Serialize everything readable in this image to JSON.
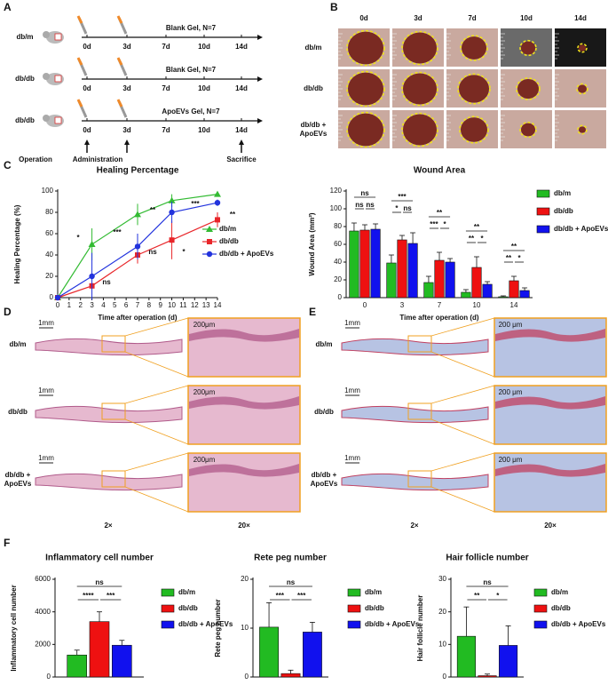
{
  "panel_labels": [
    "A",
    "B",
    "C",
    "D",
    "E",
    "F"
  ],
  "panel_a": {
    "rows": [
      {
        "group": "db/m",
        "treatment": "Blank Gel, N=7"
      },
      {
        "group": "db/db",
        "treatment": "Blank Gel, N=7"
      },
      {
        "group": "db/db",
        "treatment": "ApoEVs Gel, N=7"
      }
    ],
    "timepoints": [
      "0d",
      "3d",
      "7d",
      "10d",
      "14d"
    ],
    "steps": [
      "Operation",
      "Administration",
      "Sacrifice"
    ]
  },
  "panel_b": {
    "columns": [
      "0d",
      "3d",
      "7d",
      "10d",
      "14d"
    ],
    "rows": [
      "db/m",
      "db/db",
      "db/db + ApoEVs"
    ]
  },
  "panel_d": {
    "rows": [
      "db/m",
      "db/db",
      "db/db + ApoEVs"
    ],
    "scale_bars": [
      "1mm",
      "200μm"
    ],
    "magnifications": [
      "2×",
      "20×"
    ]
  },
  "panel_e": {
    "rows": [
      "db/m",
      "db/db",
      "db/db + ApoEVs"
    ],
    "scale_bars": [
      "1mm",
      "200 μm"
    ],
    "magnifications": [
      "2×",
      "20×"
    ]
  },
  "chart_data": [
    {
      "type": "line",
      "title": "Healing Percentage",
      "x_label": "Time after operation (d)",
      "y_label": "Healing Percentage (%)",
      "x": [
        0,
        3,
        7,
        10,
        14
      ],
      "xlim": [
        0,
        14
      ],
      "xticks": [
        0,
        1,
        2,
        3,
        4,
        5,
        6,
        7,
        8,
        9,
        10,
        11,
        12,
        13,
        14
      ],
      "ylim": [
        0,
        100
      ],
      "yticks": [
        0,
        20,
        40,
        60,
        80,
        100
      ],
      "series": [
        {
          "name": "db/m",
          "color": "#33bb33",
          "marker": "triangle",
          "values": [
            0,
            50,
            78,
            91,
            97
          ],
          "errors": [
            0,
            15,
            10,
            6,
            2
          ]
        },
        {
          "name": "db/db",
          "color": "#e8262a",
          "marker": "square",
          "values": [
            0,
            11,
            40,
            54,
            73
          ],
          "errors": [
            0,
            3,
            8,
            18,
            7
          ]
        },
        {
          "name": "db/db + ApoEVs",
          "color": "#2233dd",
          "marker": "circle",
          "values": [
            0,
            20,
            48,
            80,
            89
          ],
          "errors": [
            0,
            22,
            12,
            10,
            3
          ]
        }
      ],
      "annotations": [
        "*",
        "ns",
        "***",
        "ns",
        "**",
        "*",
        "***",
        "**"
      ]
    },
    {
      "type": "bar",
      "title": "Wound Area",
      "x_label": "Time after operation (d)",
      "y_label": "Wound Area (mm²)",
      "categories": [
        "0",
        "3",
        "7",
        "10",
        "14"
      ],
      "ylim": [
        0,
        120
      ],
      "yticks": [
        0,
        20,
        40,
        60,
        80,
        100,
        120
      ],
      "series": [
        {
          "name": "db/m",
          "color": "#22bb22",
          "values": [
            75,
            39,
            17,
            6,
            1
          ],
          "errors": [
            9,
            9,
            7,
            3,
            1
          ]
        },
        {
          "name": "db/db",
          "color": "#ee1111",
          "values": [
            76,
            65,
            42,
            34,
            19
          ],
          "errors": [
            6,
            5,
            9,
            12,
            5
          ]
        },
        {
          "name": "db/db + ApoEVs",
          "color": "#1111ee",
          "values": [
            77,
            61,
            40,
            15,
            8
          ],
          "errors": [
            6,
            12,
            4,
            3,
            3
          ]
        }
      ],
      "annotations": [
        "ns",
        "ns",
        "ns",
        "***",
        "*",
        "ns",
        "**",
        "***",
        "*",
        "**",
        "**",
        "*",
        "**",
        "**",
        "*"
      ]
    },
    {
      "type": "bar",
      "title": "Inflammatory cell number",
      "y_label": "Inflammatory cell number",
      "ylim": [
        0,
        6000
      ],
      "yticks": [
        0,
        2000,
        4000,
        6000
      ],
      "series": [
        {
          "name": "db/m",
          "color": "#22bb22",
          "values": [
            1350
          ],
          "errors": [
            300
          ]
        },
        {
          "name": "db/db",
          "color": "#ee1111",
          "values": [
            3400
          ],
          "errors": [
            600
          ]
        },
        {
          "name": "db/db + ApoEVs",
          "color": "#1111ee",
          "values": [
            1950
          ],
          "errors": [
            300
          ]
        }
      ],
      "annotations": [
        "ns",
        "****",
        "***"
      ]
    },
    {
      "type": "bar",
      "title": "Rete peg number",
      "y_label": "Rete peg number",
      "ylim": [
        0,
        20
      ],
      "yticks": [
        0,
        10,
        20
      ],
      "series": [
        {
          "name": "db/m",
          "color": "#22bb22",
          "values": [
            10.2
          ],
          "errors": [
            5
          ]
        },
        {
          "name": "db/db",
          "color": "#ee1111",
          "values": [
            0.7
          ],
          "errors": [
            0.7
          ]
        },
        {
          "name": "db/db + ApoEVs",
          "color": "#1111ee",
          "values": [
            9.2
          ],
          "errors": [
            2
          ]
        }
      ],
      "annotations": [
        "ns",
        "***",
        "***"
      ]
    },
    {
      "type": "bar",
      "title": "Hair follicle number",
      "y_label": "Hair follicle number",
      "ylim": [
        0,
        30
      ],
      "yticks": [
        0,
        10,
        20,
        30
      ],
      "series": [
        {
          "name": "db/m",
          "color": "#22bb22",
          "values": [
            12.5
          ],
          "errors": [
            9
          ]
        },
        {
          "name": "db/db",
          "color": "#ee1111",
          "values": [
            0.4
          ],
          "errors": [
            0.5
          ]
        },
        {
          "name": "db/db + ApoEVs",
          "color": "#1111ee",
          "values": [
            9.7
          ],
          "errors": [
            6
          ]
        }
      ],
      "annotations": [
        "ns",
        "**",
        "*"
      ]
    }
  ]
}
